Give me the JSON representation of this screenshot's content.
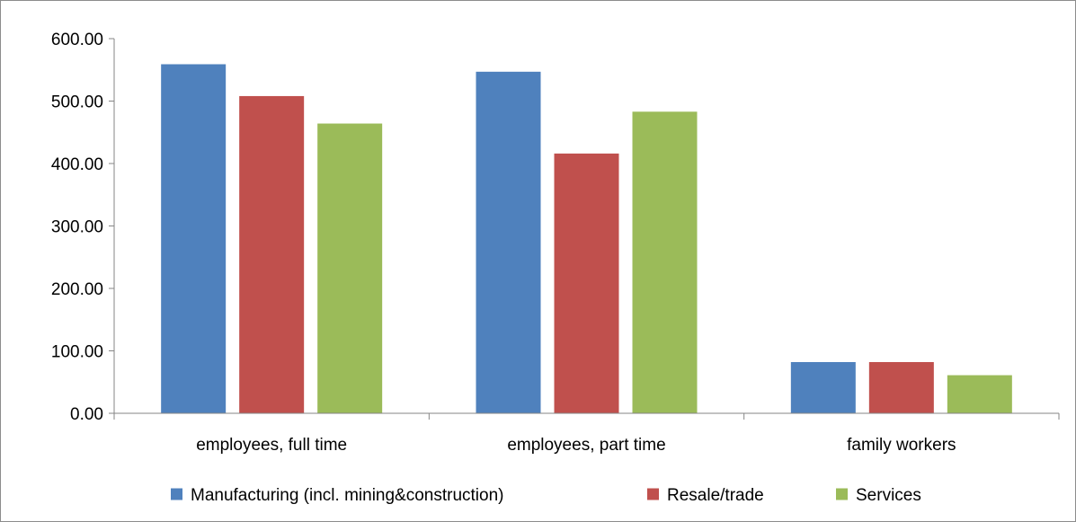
{
  "chart_data": {
    "type": "bar",
    "title": "",
    "xlabel": "",
    "ylabel": "",
    "categories": [
      "employees, full time",
      "employees, part time",
      "family workers"
    ],
    "series": [
      {
        "name": "Manufacturing (incl. mining&construction)",
        "color": "#4F81BD",
        "values": [
          559,
          547,
          82
        ]
      },
      {
        "name": "Resale/trade",
        "color": "#C0504D",
        "values": [
          508,
          416,
          82
        ]
      },
      {
        "name": "Services",
        "color": "#9BBB59",
        "values": [
          464,
          483,
          61
        ]
      }
    ],
    "ylim": [
      0,
      600
    ],
    "yticks": [
      "0.00",
      "100.00",
      "200.00",
      "300.00",
      "400.00",
      "500.00",
      "600.00"
    ],
    "grid": false,
    "legend_position": "bottom"
  }
}
